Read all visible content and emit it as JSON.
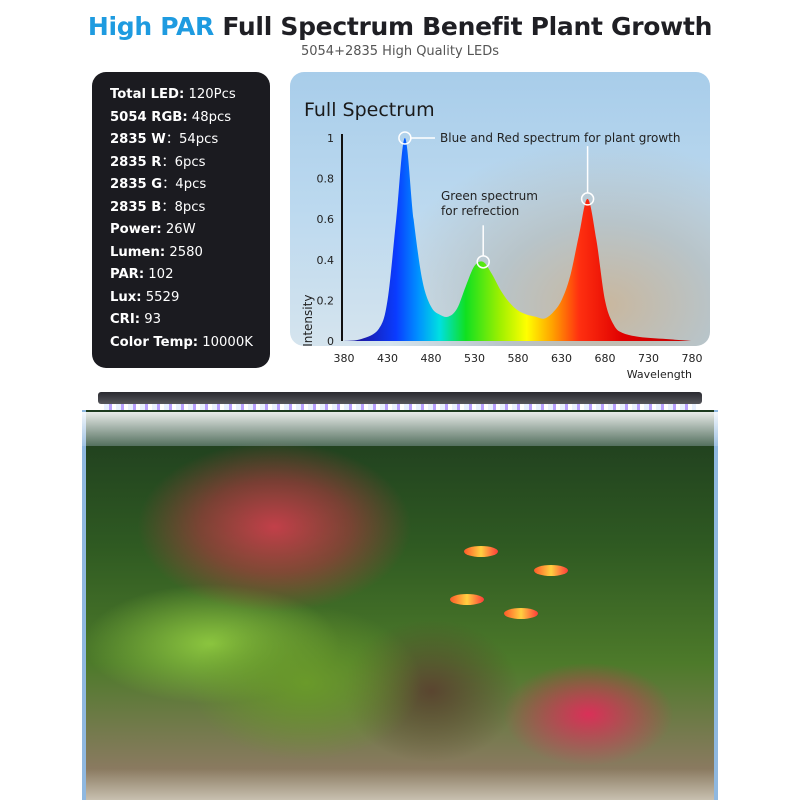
{
  "header": {
    "title_highlight": "High PAR",
    "title_rest": " Full Spectrum Benefit Plant Growth",
    "subtitle": "5054+2835 High Quality LEDs"
  },
  "specs": [
    {
      "label": "Total LED:",
      "value": " 120Pcs"
    },
    {
      "label": "5054 RGB:",
      "value": " 48pcs"
    },
    {
      "label": "2835 W",
      "value": "：54pcs"
    },
    {
      "label": "2835 R",
      "value": "：6pcs"
    },
    {
      "label": "2835 G",
      "value": "：4pcs"
    },
    {
      "label": "2835 B",
      "value": "：8pcs"
    },
    {
      "label": "Power:",
      "value": " 26W"
    },
    {
      "label": "Lumen:",
      "value": " 2580"
    },
    {
      "label": "PAR:",
      "value": " 102"
    },
    {
      "label": "Lux:",
      "value": " 5529"
    },
    {
      "label": "CRI:",
      "value": " 93"
    },
    {
      "label": "Color Temp:",
      "value": " 10000K"
    }
  ],
  "colors": {
    "accent": "#1e9be0",
    "spec_bg": "#1b1b20"
  },
  "chart_data": {
    "type": "area",
    "title": "Full Spectrum",
    "xlabel": "Wavelength",
    "ylabel": "Intensity",
    "xlim": [
      380,
      780
    ],
    "ylim": [
      0,
      1
    ],
    "xticks": [
      380,
      430,
      480,
      530,
      580,
      630,
      680,
      730,
      780
    ],
    "yticks": [
      "0",
      "0.2",
      "0.4",
      "0.6",
      "0.8",
      "1"
    ],
    "grid": false,
    "x": [
      380,
      400,
      420,
      430,
      440,
      450,
      460,
      470,
      480,
      490,
      500,
      510,
      520,
      530,
      540,
      550,
      560,
      570,
      580,
      590,
      600,
      610,
      620,
      630,
      640,
      650,
      660,
      670,
      680,
      690,
      700,
      720,
      750,
      780
    ],
    "y": [
      0,
      0.01,
      0.06,
      0.2,
      0.6,
      1.0,
      0.6,
      0.3,
      0.17,
      0.13,
      0.12,
      0.16,
      0.27,
      0.37,
      0.39,
      0.33,
      0.25,
      0.19,
      0.15,
      0.13,
      0.12,
      0.11,
      0.14,
      0.2,
      0.32,
      0.52,
      0.7,
      0.5,
      0.2,
      0.08,
      0.04,
      0.02,
      0.01,
      0
    ],
    "annotations": [
      {
        "text": "Blue and Red spectrum for plant growth",
        "x": 450,
        "y": 1.0,
        "x2": 660,
        "y2": 0.7
      },
      {
        "text_lines": [
          "Green spectrum",
          "for refrection"
        ],
        "x": 540,
        "y": 0.39
      }
    ]
  }
}
